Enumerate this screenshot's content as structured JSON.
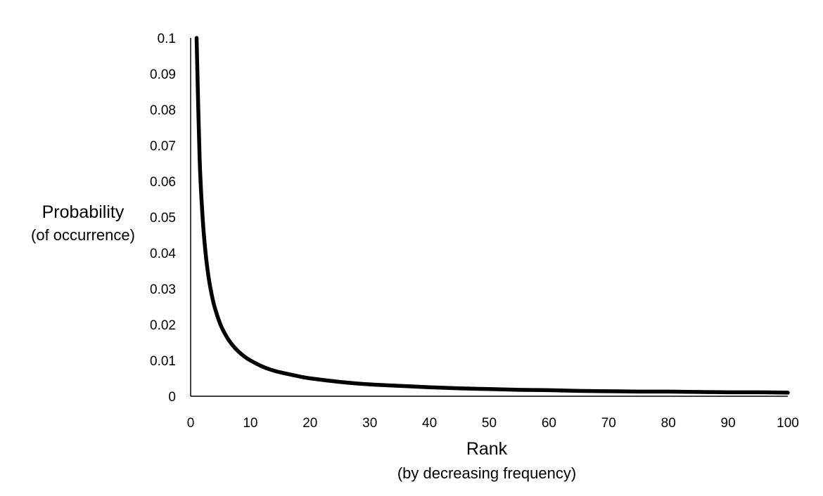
{
  "chart_data": {
    "type": "line",
    "title": "",
    "xlabel": "Rank",
    "xlabel_sub": "(by decreasing frequency)",
    "ylabel": "Probability",
    "ylabel_sub": "(of occurrence)",
    "xlim": [
      0,
      100
    ],
    "ylim": [
      0,
      0.1
    ],
    "x_ticks": [
      "0",
      "10",
      "20",
      "30",
      "40",
      "50",
      "60",
      "70",
      "80",
      "90",
      "100"
    ],
    "y_ticks": [
      "0",
      "0.01",
      "0.02",
      "0.03",
      "0.04",
      "0.05",
      "0.06",
      "0.07",
      "0.08",
      "0.09",
      "0.1"
    ],
    "grid": false,
    "legend": "none",
    "series": [
      {
        "color": "#000000",
        "x": [
          1,
          1.5,
          2,
          2.5,
          3,
          3.5,
          4,
          5,
          6,
          7,
          8,
          9,
          10,
          12,
          14,
          16,
          18,
          20,
          25,
          30,
          35,
          40,
          45,
          50,
          55,
          60,
          65,
          70,
          75,
          80,
          85,
          90,
          95,
          100
        ],
        "y": [
          0.1,
          0.0667,
          0.05,
          0.04,
          0.0333,
          0.0286,
          0.025,
          0.02,
          0.0167,
          0.0143,
          0.0125,
          0.0111,
          0.01,
          0.0083,
          0.0071,
          0.0063,
          0.0056,
          0.005,
          0.004,
          0.0033,
          0.0029,
          0.0025,
          0.0022,
          0.002,
          0.0018,
          0.0017,
          0.0015,
          0.0014,
          0.0013,
          0.0013,
          0.0012,
          0.0011,
          0.0011,
          0.001
        ]
      }
    ]
  }
}
